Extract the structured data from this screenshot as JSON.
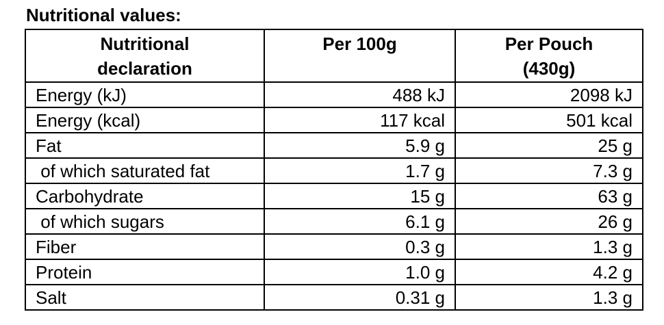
{
  "header": {
    "title": "Nutritional values:"
  },
  "table": {
    "columns": [
      "Nutritional\ndeclaration",
      "Per 100g",
      "Per Pouch\n(430g)"
    ],
    "rows": [
      [
        "Energy (kJ)",
        "488 kJ",
        "2098 kJ"
      ],
      [
        "Energy (kcal)",
        "117 kcal",
        "501 kcal"
      ],
      [
        "Fat",
        "5.9 g",
        "25 g"
      ],
      [
        " of which saturated fat",
        "1.7 g",
        "7.3 g"
      ],
      [
        "Carbohydrate",
        "15 g",
        "63 g"
      ],
      [
        " of which sugars",
        "6.1 g",
        "26 g"
      ],
      [
        "Fiber",
        "0.3 g",
        "1.3 g"
      ],
      [
        "Protein",
        "1.0 g",
        "4.2 g"
      ],
      [
        "Salt",
        "0.31 g",
        "1.3 g"
      ]
    ]
  }
}
